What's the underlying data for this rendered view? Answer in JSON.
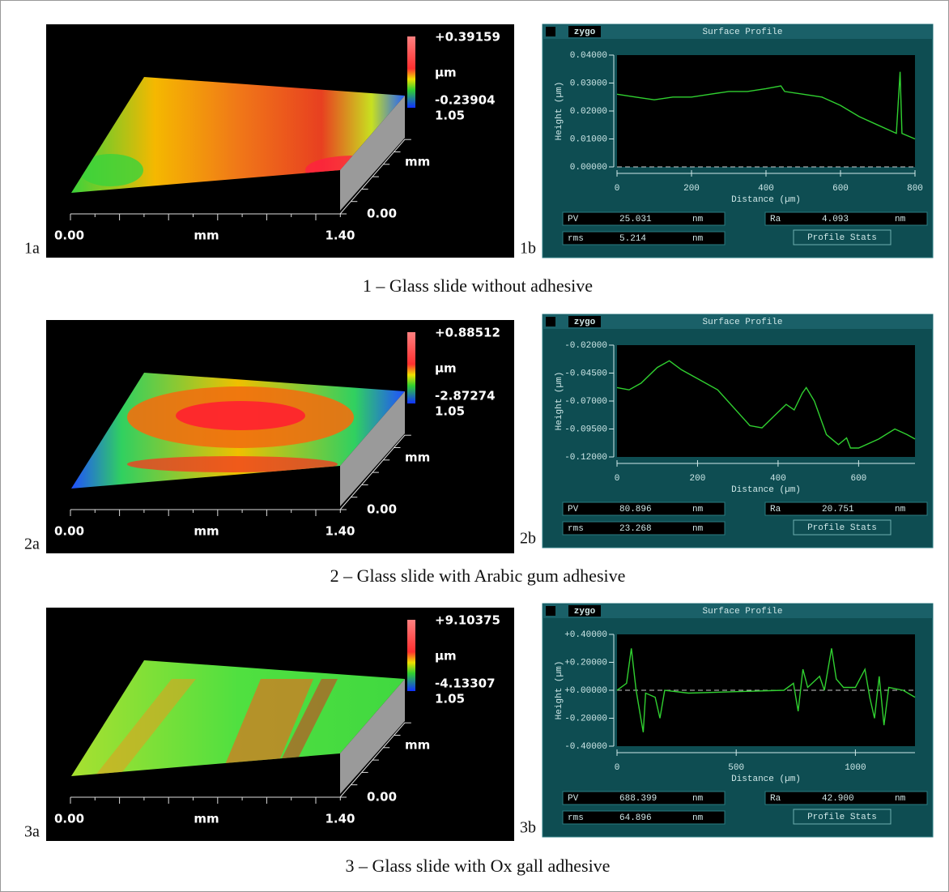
{
  "rows": [
    {
      "map": {
        "label": "1a",
        "max": "+0.39159",
        "unit": "µm",
        "min": "-0.23904",
        "ylen": "1.05",
        "yunit": "mm",
        "yzero": "0.00",
        "xstart": "0.00",
        "xunit": "mm",
        "xend": "1.40"
      },
      "profile": {
        "label": "1b",
        "brand": "zygo",
        "title": "Surface Profile",
        "ylabel": "Height (µm)",
        "xlabel": "Distance (µm)",
        "ylim": [
          0,
          0.04
        ],
        "yticks": [
          {
            "value": 0.04,
            "label": "0.04000"
          },
          {
            "value": 0.03,
            "label": "0.03000"
          },
          {
            "value": 0.02,
            "label": "0.02000"
          },
          {
            "value": 0.01,
            "label": "0.01000"
          },
          {
            "value": 0,
            "label": "0.00000"
          }
        ],
        "xlim": [
          0,
          800
        ],
        "xticks": [
          0,
          200,
          400,
          600,
          800
        ],
        "x": [
          0,
          50,
          100,
          150,
          200,
          250,
          300,
          350,
          400,
          440,
          450,
          500,
          550,
          600,
          650,
          700,
          750,
          760,
          765,
          800
        ],
        "values": [
          0.026,
          0.025,
          0.024,
          0.025,
          0.025,
          0.026,
          0.027,
          0.027,
          0.028,
          0.029,
          0.027,
          0.026,
          0.025,
          0.022,
          0.018,
          0.015,
          0.012,
          0.034,
          0.012,
          0.01
        ],
        "stats": {
          "pv_label": "PV",
          "pv": "25.031",
          "pv_unit": "nm",
          "rms_label": "rms",
          "rms": "5.214",
          "rms_unit": "nm",
          "ra_label": "Ra",
          "ra": "4.093",
          "ra_unit": "nm",
          "button": "Profile Stats"
        }
      },
      "caption": "1 – Glass slide without adhesive"
    },
    {
      "map": {
        "label": "2a",
        "max": "+0.88512",
        "unit": "µm",
        "min": "-2.87274",
        "ylen": "1.05",
        "yunit": "mm",
        "yzero": "0.00",
        "xstart": "0.00",
        "xunit": "mm",
        "xend": "1.40"
      },
      "profile": {
        "label": "2b",
        "brand": "zygo",
        "title": "Surface Profile",
        "ylabel": "Height (µm)",
        "xlabel": "Distance (µm)",
        "ylim": [
          -0.12,
          -0.02
        ],
        "yticks": [
          {
            "value": -0.02,
            "label": "-0.02000"
          },
          {
            "value": -0.045,
            "label": "-0.04500"
          },
          {
            "value": -0.07,
            "label": "-0.07000"
          },
          {
            "value": -0.095,
            "label": "-0.09500"
          },
          {
            "value": -0.12,
            "label": "-0.12000"
          }
        ],
        "xlim": [
          0,
          740
        ],
        "xticks": [
          0,
          200,
          400,
          600
        ],
        "x": [
          0,
          30,
          60,
          100,
          130,
          160,
          200,
          250,
          300,
          330,
          360,
          400,
          420,
          440,
          460,
          470,
          490,
          520,
          550,
          570,
          580,
          600,
          650,
          690,
          720,
          740
        ],
        "values": [
          -0.058,
          -0.06,
          -0.054,
          -0.04,
          -0.034,
          -0.042,
          -0.05,
          -0.06,
          -0.08,
          -0.092,
          -0.094,
          -0.08,
          -0.073,
          -0.078,
          -0.063,
          -0.058,
          -0.07,
          -0.1,
          -0.109,
          -0.103,
          -0.112,
          -0.112,
          -0.104,
          -0.095,
          -0.1,
          -0.104
        ],
        "stats": {
          "pv_label": "PV",
          "pv": "80.896",
          "pv_unit": "nm",
          "rms_label": "rms",
          "rms": "23.268",
          "rms_unit": "nm",
          "ra_label": "Ra",
          "ra": "20.751",
          "ra_unit": "nm",
          "button": "Profile Stats"
        }
      },
      "caption": "2 – Glass slide with Arabic gum adhesive"
    },
    {
      "map": {
        "label": "3a",
        "max": "+9.10375",
        "unit": "µm",
        "min": "-4.13307",
        "ylen": "1.05",
        "yunit": "mm",
        "yzero": "0.00",
        "xstart": "0.00",
        "xunit": "mm",
        "xend": "1.40"
      },
      "profile": {
        "label": "3b",
        "brand": "zygo",
        "title": "Surface Profile",
        "ylabel": "Height (µm)",
        "xlabel": "Distance (µm)",
        "ylim": [
          -0.4,
          0.4
        ],
        "yticks": [
          {
            "value": 0.4,
            "label": "+0.40000"
          },
          {
            "value": 0.2,
            "label": "+0.20000"
          },
          {
            "value": 0,
            "label": "+0.00000"
          },
          {
            "value": -0.2,
            "label": "-0.20000"
          },
          {
            "value": -0.4,
            "label": "-0.40000"
          }
        ],
        "xlim": [
          0,
          1250
        ],
        "xticks": [
          0,
          500,
          1000
        ],
        "x": [
          0,
          40,
          60,
          80,
          100,
          110,
          120,
          160,
          180,
          200,
          300,
          500,
          700,
          740,
          760,
          780,
          800,
          850,
          870,
          900,
          920,
          950,
          1000,
          1040,
          1060,
          1080,
          1100,
          1120,
          1140,
          1200,
          1250
        ],
        "values": [
          0,
          0.05,
          0.3,
          0,
          -0.2,
          -0.3,
          -0.02,
          -0.05,
          -0.2,
          0,
          -0.02,
          -0.01,
          0,
          0.05,
          -0.15,
          0.15,
          0.02,
          0.1,
          0,
          0.3,
          0.08,
          0.02,
          0.02,
          0.15,
          -0.05,
          -0.2,
          0.1,
          -0.25,
          0.02,
          0,
          -0.05
        ],
        "stats": {
          "pv_label": "PV",
          "pv": "688.399",
          "pv_unit": "nm",
          "rms_label": "rms",
          "rms": "64.896",
          "rms_unit": "nm",
          "ra_label": "Ra",
          "ra": "42.900",
          "ra_unit": "nm",
          "button": "Profile Stats"
        }
      },
      "caption": "3 – Glass slide with Ox gall adhesive"
    }
  ]
}
